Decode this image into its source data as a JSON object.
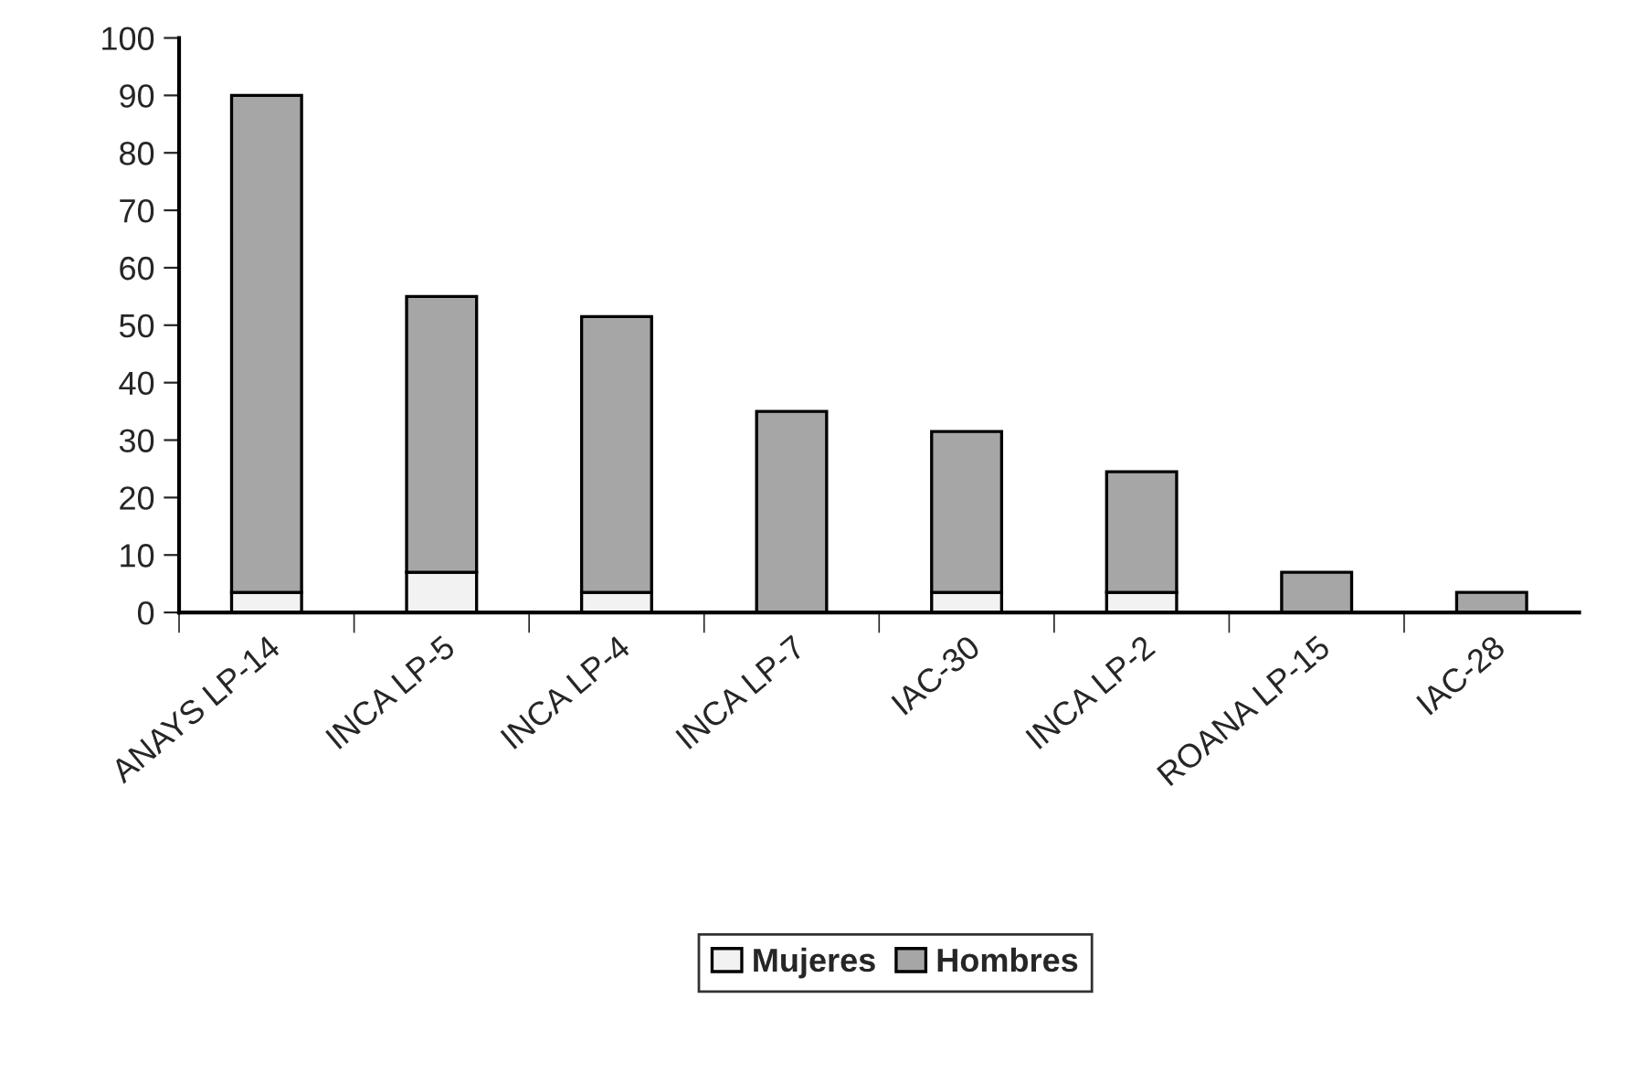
{
  "chart_data": {
    "type": "bar",
    "stacked": true,
    "categories": [
      "ANAYS LP-14",
      "INCA LP-5",
      "INCA LP-4",
      "INCA LP-7",
      "IAC-30",
      "INCA LP-2",
      "ROANA LP-15",
      "IAC-28"
    ],
    "series": [
      {
        "name": "Mujeres",
        "color": "#f2f2f2",
        "values": [
          3.5,
          7,
          3.5,
          0,
          3.5,
          3.5,
          0,
          0
        ]
      },
      {
        "name": "Hombres",
        "color": "#a6a6a6",
        "values": [
          86.5,
          48,
          48,
          35,
          28,
          21,
          7,
          3.5
        ]
      }
    ],
    "ylim": [
      0,
      100
    ],
    "yticks": [
      0,
      10,
      20,
      30,
      40,
      50,
      60,
      70,
      80,
      90,
      100
    ],
    "grid": false,
    "legend": "bottom"
  }
}
